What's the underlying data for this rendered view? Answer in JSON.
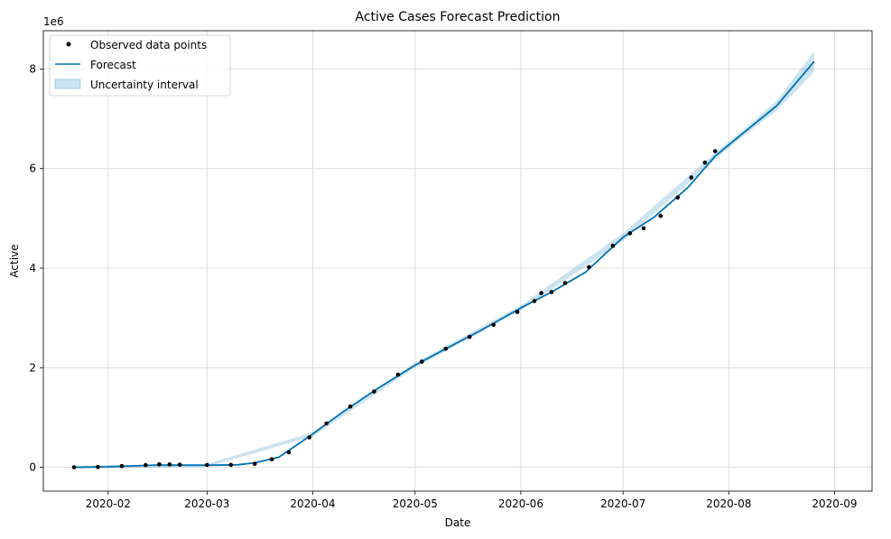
{
  "chart_data": {
    "type": "line",
    "title": "Active Cases Forecast Prediction",
    "xlabel": "Date",
    "ylabel": "Active",
    "y_offset_label": "1e6",
    "xlim": [
      "2020-01-13",
      "2020-09-12"
    ],
    "ylim": [
      -0.48,
      8.77
    ],
    "grid": true,
    "legend_placement": "top-left",
    "x_ticks": [
      "2020-02",
      "2020-03",
      "2020-04",
      "2020-05",
      "2020-06",
      "2020-07",
      "2020-08",
      "2020-09"
    ],
    "y_ticks": [
      0,
      2,
      4,
      6,
      8
    ],
    "y_tick_labels": [
      "0",
      "2",
      "4",
      "6",
      "8"
    ],
    "colors": {
      "observed": "#000000",
      "forecast": "#0072B2",
      "uncertainty": "#0072B2",
      "grid": "#dddddd"
    },
    "series": [
      {
        "name": "Observed data points",
        "kind": "points",
        "points": [
          [
            "2020-01-22",
            0.0005
          ],
          [
            "2020-01-29",
            0.006
          ],
          [
            "2020-02-05",
            0.024
          ],
          [
            "2020-02-12",
            0.044
          ],
          [
            "2020-02-16",
            0.058
          ],
          [
            "2020-02-19",
            0.056
          ],
          [
            "2020-02-22",
            0.052
          ],
          [
            "2020-03-01",
            0.046
          ],
          [
            "2020-03-08",
            0.048
          ],
          [
            "2020-03-15",
            0.07
          ],
          [
            "2020-03-20",
            0.16
          ],
          [
            "2020-03-25",
            0.3
          ],
          [
            "2020-03-31",
            0.6
          ],
          [
            "2020-04-05",
            0.88
          ],
          [
            "2020-04-12",
            1.22
          ],
          [
            "2020-04-19",
            1.52
          ],
          [
            "2020-04-26",
            1.86
          ],
          [
            "2020-05-03",
            2.12
          ],
          [
            "2020-05-10",
            2.38
          ],
          [
            "2020-05-17",
            2.62
          ],
          [
            "2020-05-24",
            2.86
          ],
          [
            "2020-05-31",
            3.12
          ],
          [
            "2020-06-05",
            3.34
          ],
          [
            "2020-06-07",
            3.5
          ],
          [
            "2020-06-10",
            3.52
          ],
          [
            "2020-06-14",
            3.7
          ],
          [
            "2020-06-21",
            4.02
          ],
          [
            "2020-06-28",
            4.45
          ],
          [
            "2020-07-03",
            4.7
          ],
          [
            "2020-07-07",
            4.8
          ],
          [
            "2020-07-12",
            5.05
          ],
          [
            "2020-07-17",
            5.42
          ],
          [
            "2020-07-21",
            5.82
          ],
          [
            "2020-07-25",
            6.12
          ],
          [
            "2020-07-28",
            6.35
          ]
        ]
      },
      {
        "name": "Forecast",
        "kind": "line",
        "points": [
          [
            "2020-01-22",
            0.0
          ],
          [
            "2020-02-01",
            0.01
          ],
          [
            "2020-02-15",
            0.045
          ],
          [
            "2020-03-01",
            0.04
          ],
          [
            "2020-03-10",
            0.05
          ],
          [
            "2020-03-15",
            0.09
          ],
          [
            "2020-03-22",
            0.2
          ],
          [
            "2020-03-31",
            0.62
          ],
          [
            "2020-04-10",
            1.12
          ],
          [
            "2020-04-20",
            1.58
          ],
          [
            "2020-05-01",
            2.05
          ],
          [
            "2020-05-10",
            2.38
          ],
          [
            "2020-05-20",
            2.74
          ],
          [
            "2020-06-01",
            3.2
          ],
          [
            "2020-06-10",
            3.52
          ],
          [
            "2020-06-20",
            3.92
          ],
          [
            "2020-07-01",
            4.62
          ],
          [
            "2020-07-10",
            5.02
          ],
          [
            "2020-07-20",
            5.62
          ],
          [
            "2020-07-28",
            6.25
          ],
          [
            "2020-08-05",
            6.7
          ],
          [
            "2020-08-15",
            7.26
          ],
          [
            "2020-08-26",
            8.15
          ]
        ]
      },
      {
        "name": "Uncertainty interval",
        "kind": "band",
        "points": [
          [
            "2020-01-22",
            -0.03,
            0.03
          ],
          [
            "2020-03-01",
            0.01,
            0.07
          ],
          [
            "2020-04-01",
            0.62,
            0.7
          ],
          [
            "2020-05-01",
            2.0,
            2.1
          ],
          [
            "2020-06-01",
            3.15,
            3.25
          ],
          [
            "2020-07-01",
            4.55,
            4.7
          ],
          [
            "2020-07-28",
            6.18,
            6.32
          ],
          [
            "2020-08-05",
            6.64,
            6.76
          ],
          [
            "2020-08-15",
            7.16,
            7.36
          ],
          [
            "2020-08-26",
            7.94,
            8.36
          ]
        ]
      }
    ]
  }
}
